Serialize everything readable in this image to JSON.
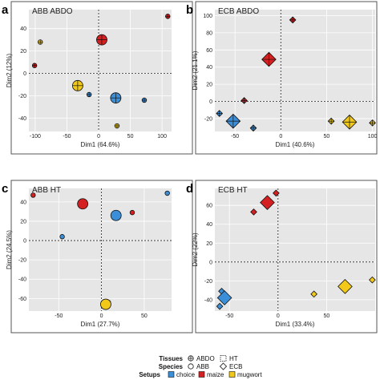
{
  "colors": {
    "choice": "#3b8fd9",
    "maize": "#d42020",
    "mugwort": "#f2c918",
    "plot_bg": "#e6e6e6",
    "grid": "#ffffff"
  },
  "legend": {
    "tissues_title": "Tissues",
    "tissues": [
      "ABDO",
      "HT"
    ],
    "species_title": "Species",
    "species": [
      "ABB",
      "ECB"
    ],
    "setups_title": "Setups",
    "setups": [
      "choice",
      "maize",
      "mugwort"
    ]
  },
  "chart_data": [
    {
      "type": "scatter",
      "letter": "a",
      "title": "ABB ABDO",
      "xlabel": "Dim1 (64.6%)",
      "ylabel": "Dim2 (12%)",
      "xlim": [
        -110,
        115
      ],
      "ylim": [
        -52,
        57
      ],
      "xticks": [
        -100,
        -50,
        0,
        50,
        100
      ],
      "yticks": [
        -40,
        -20,
        0,
        20,
        40
      ],
      "tissue": "ABDO",
      "species": "ABB",
      "points": [
        {
          "x": 109,
          "y": 51,
          "setup": "maize"
        },
        {
          "x": -92,
          "y": 28,
          "setup": "mugwort"
        },
        {
          "x": -101,
          "y": 7,
          "setup": "maize"
        },
        {
          "x": -15,
          "y": -19,
          "setup": "choice"
        },
        {
          "x": 72,
          "y": -24,
          "setup": "choice"
        },
        {
          "x": 29,
          "y": -47,
          "setup": "mugwort"
        },
        {
          "x": 5,
          "y": 30,
          "setup": "maize",
          "centroid": true
        },
        {
          "x": -33,
          "y": -11,
          "setup": "mugwort",
          "centroid": true
        },
        {
          "x": 27,
          "y": -22,
          "setup": "choice",
          "centroid": true
        }
      ]
    },
    {
      "type": "scatter",
      "letter": "b",
      "title": "ECB ABDO",
      "xlabel": "Dim1 (40.6%)",
      "ylabel": "Dim2 (21.1%)",
      "xlim": [
        -72,
        103
      ],
      "ylim": [
        -35,
        107
      ],
      "xticks": [
        -50,
        0,
        50,
        100
      ],
      "yticks": [
        -20,
        0,
        20,
        40,
        60,
        80,
        100
      ],
      "tissue": "ABDO",
      "species": "ECB",
      "points": [
        {
          "x": 13,
          "y": 95,
          "setup": "maize"
        },
        {
          "x": -40,
          "y": 1,
          "setup": "maize"
        },
        {
          "x": -67,
          "y": -14,
          "setup": "choice"
        },
        {
          "x": -30,
          "y": -31,
          "setup": "choice"
        },
        {
          "x": 55,
          "y": -23,
          "setup": "mugwort"
        },
        {
          "x": 100,
          "y": -25,
          "setup": "mugwort"
        },
        {
          "x": -13,
          "y": 49,
          "setup": "maize",
          "centroid": true
        },
        {
          "x": -52,
          "y": -23,
          "setup": "choice",
          "centroid": true
        },
        {
          "x": 75,
          "y": -24,
          "setup": "mugwort",
          "centroid": true
        }
      ]
    },
    {
      "type": "scatter",
      "letter": "c",
      "title": "ABB HT",
      "xlabel": "Dim1 (27.7%)",
      "ylabel": "Dim2 (24.5%)",
      "xlim": [
        -85,
        82
      ],
      "ylim": [
        -73,
        54
      ],
      "xticks": [
        -50,
        0,
        50
      ],
      "yticks": [
        -60,
        -40,
        -20,
        0,
        20,
        40
      ],
      "tissue": "HT",
      "species": "ABB",
      "points": [
        {
          "x": -80,
          "y": 47,
          "setup": "maize"
        },
        {
          "x": 36,
          "y": 29,
          "setup": "maize"
        },
        {
          "x": 77,
          "y": 49,
          "setup": "choice"
        },
        {
          "x": -46,
          "y": 4,
          "setup": "choice"
        },
        {
          "x": 8,
          "y": -64,
          "setup": "mugwort"
        },
        {
          "x": -22,
          "y": 38,
          "setup": "maize",
          "centroid": true
        },
        {
          "x": 17,
          "y": 26,
          "setup": "choice",
          "centroid": true
        },
        {
          "x": 5,
          "y": -66,
          "setup": "mugwort",
          "centroid": true
        }
      ]
    },
    {
      "type": "scatter",
      "letter": "d",
      "title": "ECB HT",
      "xlabel": "Dim1 (33.4%)",
      "ylabel": "Dim2 (22%)",
      "xlim": [
        -65,
        100
      ],
      "ylim": [
        -52,
        78
      ],
      "xticks": [
        -50,
        0,
        50
      ],
      "yticks": [
        -40,
        -20,
        0,
        20,
        40,
        60
      ],
      "tissue": "HT",
      "species": "ECB",
      "points": [
        {
          "x": -2,
          "y": 73,
          "setup": "maize"
        },
        {
          "x": -25,
          "y": 53,
          "setup": "maize"
        },
        {
          "x": -58,
          "y": -31,
          "setup": "choice"
        },
        {
          "x": -60,
          "y": -47,
          "setup": "choice"
        },
        {
          "x": 37,
          "y": -34,
          "setup": "mugwort"
        },
        {
          "x": 97,
          "y": -19,
          "setup": "mugwort"
        },
        {
          "x": -11,
          "y": 63,
          "setup": "maize",
          "centroid": true
        },
        {
          "x": -55,
          "y": -38,
          "setup": "choice",
          "centroid": true
        },
        {
          "x": 69,
          "y": -26,
          "setup": "mugwort",
          "centroid": true
        }
      ]
    }
  ]
}
